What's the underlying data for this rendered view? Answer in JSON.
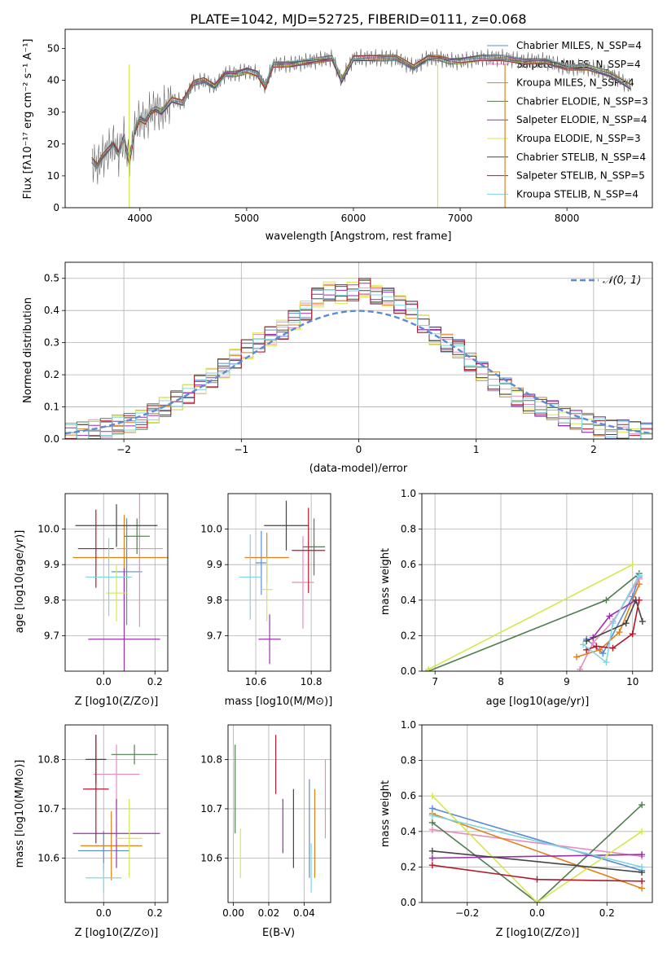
{
  "title": "PLATE=1042, MJD=52725, FIBERID=0111, z=0.068",
  "models": [
    {
      "name": "Chabrier MILES, N_SSP=4",
      "color": "#5b8bd6"
    },
    {
      "name": "Salpeter MILES, N_SSP=4",
      "color": "#e88bbf"
    },
    {
      "name": "Kroupa MILES, N_SSP=4",
      "color": "#e0801a"
    },
    {
      "name": "Chabrier ELODIE, N_SSP=3",
      "color": "#4f7d4f"
    },
    {
      "name": "Salpeter ELODIE, N_SSP=4",
      "color": "#9b2fae"
    },
    {
      "name": "Kroupa ELODIE, N_SSP=3",
      "color": "#d4e84a"
    },
    {
      "name": "Chabrier STELIB, N_SSP=4",
      "color": "#444444"
    },
    {
      "name": "Salpeter STELIB, N_SSP=5",
      "color": "#b2182b"
    },
    {
      "name": "Kroupa STELIB, N_SSP=4",
      "color": "#7fd6e0"
    }
  ],
  "chart_data": [
    {
      "type": "line",
      "id": "spectrum",
      "xlabel": "wavelength [Angstrom, rest frame]",
      "ylabel": "Flux [fλ10⁻¹⁷ erg cm⁻² s⁻¹ A⁻¹]",
      "xlim": [
        3300,
        8800
      ],
      "ylim": [
        0,
        56
      ],
      "xticks": [
        4000,
        5000,
        6000,
        7000,
        8000
      ],
      "yticks": [
        0,
        10,
        20,
        30,
        40,
        50
      ],
      "grid": false,
      "legend": "upper-right",
      "x": [
        3550,
        3600,
        3650,
        3700,
        3750,
        3800,
        3850,
        3900,
        3950,
        4000,
        4050,
        4100,
        4150,
        4200,
        4300,
        4400,
        4500,
        4600,
        4700,
        4800,
        4900,
        5000,
        5100,
        5175,
        5250,
        5400,
        5600,
        5800,
        5890,
        6000,
        6200,
        6400,
        6563,
        6700,
        6800,
        6900,
        7000,
        7200,
        7400,
        7600,
        7800,
        8000,
        8200,
        8400,
        8600
      ],
      "y": [
        15,
        13,
        16,
        18,
        20,
        17,
        22,
        14,
        24,
        28,
        27,
        30,
        31,
        30,
        34,
        33,
        39,
        40,
        38,
        42,
        42,
        43,
        42,
        38,
        45,
        45,
        46,
        47,
        40,
        47,
        47,
        47,
        44,
        47,
        47,
        46,
        46,
        47,
        47,
        46,
        46,
        44,
        44,
        42,
        38
      ]
    },
    {
      "type": "bar",
      "id": "residuals",
      "xlabel": "(data-model)/error",
      "ylabel": "Normed distribution",
      "xlim": [
        -2.5,
        2.5
      ],
      "ylim": [
        0,
        0.55
      ],
      "xticks": [
        -2,
        -1,
        0,
        1,
        2
      ],
      "yticks": [
        0.0,
        0.1,
        0.2,
        0.3,
        0.4,
        0.5
      ],
      "grid": true,
      "legend": "upper-right",
      "reference_label": "𝒩(0, 1)",
      "bin_width": 0.1,
      "x": [
        -2.5,
        -2.4,
        -2.3,
        -2.2,
        -2.1,
        -2.0,
        -1.9,
        -1.8,
        -1.7,
        -1.6,
        -1.5,
        -1.4,
        -1.3,
        -1.2,
        -1.1,
        -1.0,
        -0.9,
        -0.8,
        -0.7,
        -0.6,
        -0.5,
        -0.4,
        -0.3,
        -0.2,
        -0.1,
        0.0,
        0.1,
        0.2,
        0.3,
        0.4,
        0.5,
        0.6,
        0.7,
        0.8,
        0.9,
        1.0,
        1.1,
        1.2,
        1.3,
        1.4,
        1.5,
        1.6,
        1.7,
        1.8,
        1.9,
        2.0,
        2.1,
        2.2,
        2.3,
        2.4
      ],
      "y": [
        0.02,
        0.025,
        0.03,
        0.035,
        0.045,
        0.05,
        0.06,
        0.08,
        0.1,
        0.12,
        0.14,
        0.17,
        0.19,
        0.22,
        0.25,
        0.28,
        0.3,
        0.32,
        0.34,
        0.37,
        0.4,
        0.44,
        0.46,
        0.45,
        0.46,
        0.47,
        0.45,
        0.44,
        0.42,
        0.4,
        0.36,
        0.32,
        0.3,
        0.28,
        0.24,
        0.21,
        0.18,
        0.16,
        0.13,
        0.11,
        0.1,
        0.09,
        0.07,
        0.06,
        0.05,
        0.04,
        0.03,
        0.03,
        0.025,
        0.02
      ]
    },
    {
      "type": "scatter",
      "id": "age_vs_z",
      "xlabel": "Z [log10(Z/Z⊙)]",
      "ylabel": "age [log10(age/yr)]",
      "xlim": [
        -0.15,
        0.25
      ],
      "ylim": [
        9.6,
        10.1
      ],
      "xticks": [
        0.0,
        0.2
      ],
      "yticks": [
        9.7,
        9.8,
        9.9,
        10.0
      ],
      "grid": true,
      "points": [
        {
          "x": 0.09,
          "y": 9.88,
          "xerr": 0.06,
          "yerr": 0.15
        },
        {
          "x": 0.14,
          "y": 9.945,
          "xerr": 0.09,
          "yerr": 0.22
        },
        {
          "x": 0.08,
          "y": 9.92,
          "xerr": 0.2,
          "yerr": 0.12
        },
        {
          "x": 0.13,
          "y": 9.98,
          "xerr": 0.05,
          "yerr": 0.05
        },
        {
          "x": 0.08,
          "y": 9.69,
          "xerr": 0.14,
          "yerr": 0.2
        },
        {
          "x": 0.05,
          "y": 9.82,
          "xerr": 0.04,
          "yerr": 0.08
        },
        {
          "x": 0.05,
          "y": 10.01,
          "xerr": 0.16,
          "yerr": 0.06
        },
        {
          "x": -0.03,
          "y": 9.945,
          "xerr": 0.07,
          "yerr": 0.11
        },
        {
          "x": 0.02,
          "y": 9.865,
          "xerr": 0.09,
          "yerr": 0.11
        }
      ]
    },
    {
      "type": "scatter",
      "id": "age_vs_mass",
      "xlabel": "mass [log10(M/M⊙)]",
      "ylabel": "",
      "xlim": [
        10.5,
        10.87
      ],
      "ylim": [
        9.6,
        10.1
      ],
      "xticks": [
        10.6,
        10.8
      ],
      "yticks": [
        9.7,
        9.8,
        9.9,
        10.0
      ],
      "grid": true,
      "points": [
        {
          "x": 10.62,
          "y": 9.905,
          "xerr": 0.02,
          "yerr": 0.09
        },
        {
          "x": 10.77,
          "y": 9.85,
          "xerr": 0.04,
          "yerr": 0.13
        },
        {
          "x": 10.64,
          "y": 9.92,
          "xerr": 0.08,
          "yerr": 0.07
        },
        {
          "x": 10.81,
          "y": 9.95,
          "xerr": 0.04,
          "yerr": 0.08
        },
        {
          "x": 10.65,
          "y": 9.69,
          "xerr": 0.04,
          "yerr": 0.07
        },
        {
          "x": 10.64,
          "y": 9.83,
          "xerr": 0.02,
          "yerr": 0.09
        },
        {
          "x": 10.71,
          "y": 10.01,
          "xerr": 0.08,
          "yerr": 0.07
        },
        {
          "x": 10.79,
          "y": 9.94,
          "xerr": 0.06,
          "yerr": 0.12
        },
        {
          "x": 10.58,
          "y": 9.865,
          "xerr": 0.04,
          "yerr": 0.12
        }
      ]
    },
    {
      "type": "line",
      "id": "mass_weight_vs_age",
      "xlabel": "age [log10(age/yr)]",
      "ylabel": "mass weight",
      "xlim": [
        6.8,
        10.3
      ],
      "ylim": [
        0.0,
        1.0
      ],
      "xticks": [
        7,
        8,
        9,
        10
      ],
      "yticks": [
        0.0,
        0.2,
        0.4,
        0.6,
        0.8,
        1.0
      ],
      "grid": true,
      "series": [
        {
          "x": [
            9.3,
            9.55,
            10.0,
            10.1
          ],
          "y": [
            0.18,
            0.1,
            0.42,
            0.53
          ]
        },
        {
          "x": [
            9.2,
            9.4,
            9.7,
            10.1
          ],
          "y": [
            0.01,
            0.16,
            0.28,
            0.52
          ]
        },
        {
          "x": [
            9.15,
            9.5,
            9.8,
            10.1
          ],
          "y": [
            0.08,
            0.12,
            0.22,
            0.49
          ]
        },
        {
          "x": [
            6.9,
            9.6,
            10.1
          ],
          "y": [
            0.0,
            0.4,
            0.55
          ]
        },
        {
          "x": [
            9.4,
            9.65,
            10.05
          ],
          "y": [
            0.19,
            0.31,
            0.4
          ]
        },
        {
          "x": [
            6.9,
            10.0
          ],
          "y": [
            0.01,
            0.6
          ]
        },
        {
          "x": [
            9.3,
            9.9,
            10.05,
            10.15
          ],
          "y": [
            0.17,
            0.27,
            0.4,
            0.28
          ]
        },
        {
          "x": [
            9.3,
            9.45,
            9.7,
            10.0,
            10.1
          ],
          "y": [
            0.12,
            0.14,
            0.13,
            0.21,
            0.4
          ]
        },
        {
          "x": [
            9.25,
            9.6,
            9.7,
            10.1
          ],
          "y": [
            0.15,
            0.05,
            0.27,
            0.54
          ]
        }
      ]
    },
    {
      "type": "scatter",
      "id": "mass_vs_z",
      "xlabel": "Z [log10(Z/Z⊙)]",
      "ylabel": "mass [log10(M/M⊙)]",
      "xlim": [
        -0.15,
        0.25
      ],
      "ylim": [
        10.51,
        10.87
      ],
      "xticks": [
        0.0,
        0.2
      ],
      "yticks": [
        10.6,
        10.7,
        10.8
      ],
      "grid": true,
      "points": [
        {
          "x": 0.0,
          "y": 10.615,
          "xerr": 0.1,
          "yerr": 0.04
        },
        {
          "x": 0.05,
          "y": 10.77,
          "xerr": 0.09,
          "yerr": 0.06
        },
        {
          "x": 0.03,
          "y": 10.625,
          "xerr": 0.12,
          "yerr": 0.07
        },
        {
          "x": 0.12,
          "y": 10.81,
          "xerr": 0.09,
          "yerr": 0.02
        },
        {
          "x": 0.05,
          "y": 10.65,
          "xerr": 0.17,
          "yerr": 0.07
        },
        {
          "x": 0.1,
          "y": 10.64,
          "xerr": 0.05,
          "yerr": 0.08
        },
        {
          "x": -0.03,
          "y": 10.8,
          "xerr": 0.04,
          "yerr": 0.05
        },
        {
          "x": -0.03,
          "y": 10.74,
          "xerr": 0.05,
          "yerr": 0.11
        },
        {
          "x": 0.0,
          "y": 10.56,
          "xerr": 0.07,
          "yerr": 0.03
        }
      ]
    },
    {
      "type": "scatter",
      "id": "mass_vs_ebv",
      "xlabel": "E(B-V)",
      "ylabel": "",
      "xlim": [
        -0.003,
        0.055
      ],
      "ylim": [
        10.51,
        10.87
      ],
      "xticks": [
        0.0,
        0.02,
        0.04
      ],
      "yticks": [
        10.6,
        10.7,
        10.8
      ],
      "grid": true,
      "points": [
        {
          "x": 0.043,
          "y": 10.66,
          "yerr": 0.1
        },
        {
          "x": 0.052,
          "y": 10.72,
          "yerr": 0.08
        },
        {
          "x": 0.046,
          "y": 10.65,
          "yerr": 0.09
        },
        {
          "x": 0.001,
          "y": 10.74,
          "yerr": 0.09
        },
        {
          "x": 0.028,
          "y": 10.665,
          "yerr": 0.055
        },
        {
          "x": 0.004,
          "y": 10.61,
          "yerr": 0.05
        },
        {
          "x": 0.034,
          "y": 10.66,
          "yerr": 0.08
        },
        {
          "x": 0.024,
          "y": 10.79,
          "yerr": 0.06
        },
        {
          "x": 0.044,
          "y": 10.58,
          "yerr": 0.05
        }
      ]
    },
    {
      "type": "line",
      "id": "mass_weight_vs_z",
      "xlabel": "Z [log10(Z/Z⊙)]",
      "ylabel": "mass weight",
      "xlim": [
        -0.33,
        0.33
      ],
      "ylim": [
        0.0,
        1.0
      ],
      "xticks": [
        -0.2,
        0.0,
        0.2
      ],
      "yticks": [
        0.0,
        0.2,
        0.4,
        0.6,
        0.8,
        1.0
      ],
      "grid": true,
      "series": [
        {
          "x": [
            -0.3,
            0.3
          ],
          "y": [
            0.53,
            0.18
          ]
        },
        {
          "x": [
            -0.3,
            0.3
          ],
          "y": [
            0.41,
            0.26
          ]
        },
        {
          "x": [
            -0.3,
            0.3
          ],
          "y": [
            0.5,
            0.08
          ]
        },
        {
          "x": [
            -0.3,
            0.0,
            0.3
          ],
          "y": [
            0.45,
            0.0,
            0.55
          ]
        },
        {
          "x": [
            -0.3,
            0.3
          ],
          "y": [
            0.25,
            0.27
          ]
        },
        {
          "x": [
            -0.3,
            0.0,
            0.3
          ],
          "y": [
            0.6,
            0.0,
            0.4
          ]
        },
        {
          "x": [
            -0.3,
            0.3
          ],
          "y": [
            0.29,
            0.17
          ]
        },
        {
          "x": [
            -0.3,
            0.0,
            0.3
          ],
          "y": [
            0.21,
            0.13,
            0.12
          ]
        },
        {
          "x": [
            -0.3,
            0.3
          ],
          "y": [
            0.49,
            0.2
          ]
        }
      ]
    }
  ]
}
